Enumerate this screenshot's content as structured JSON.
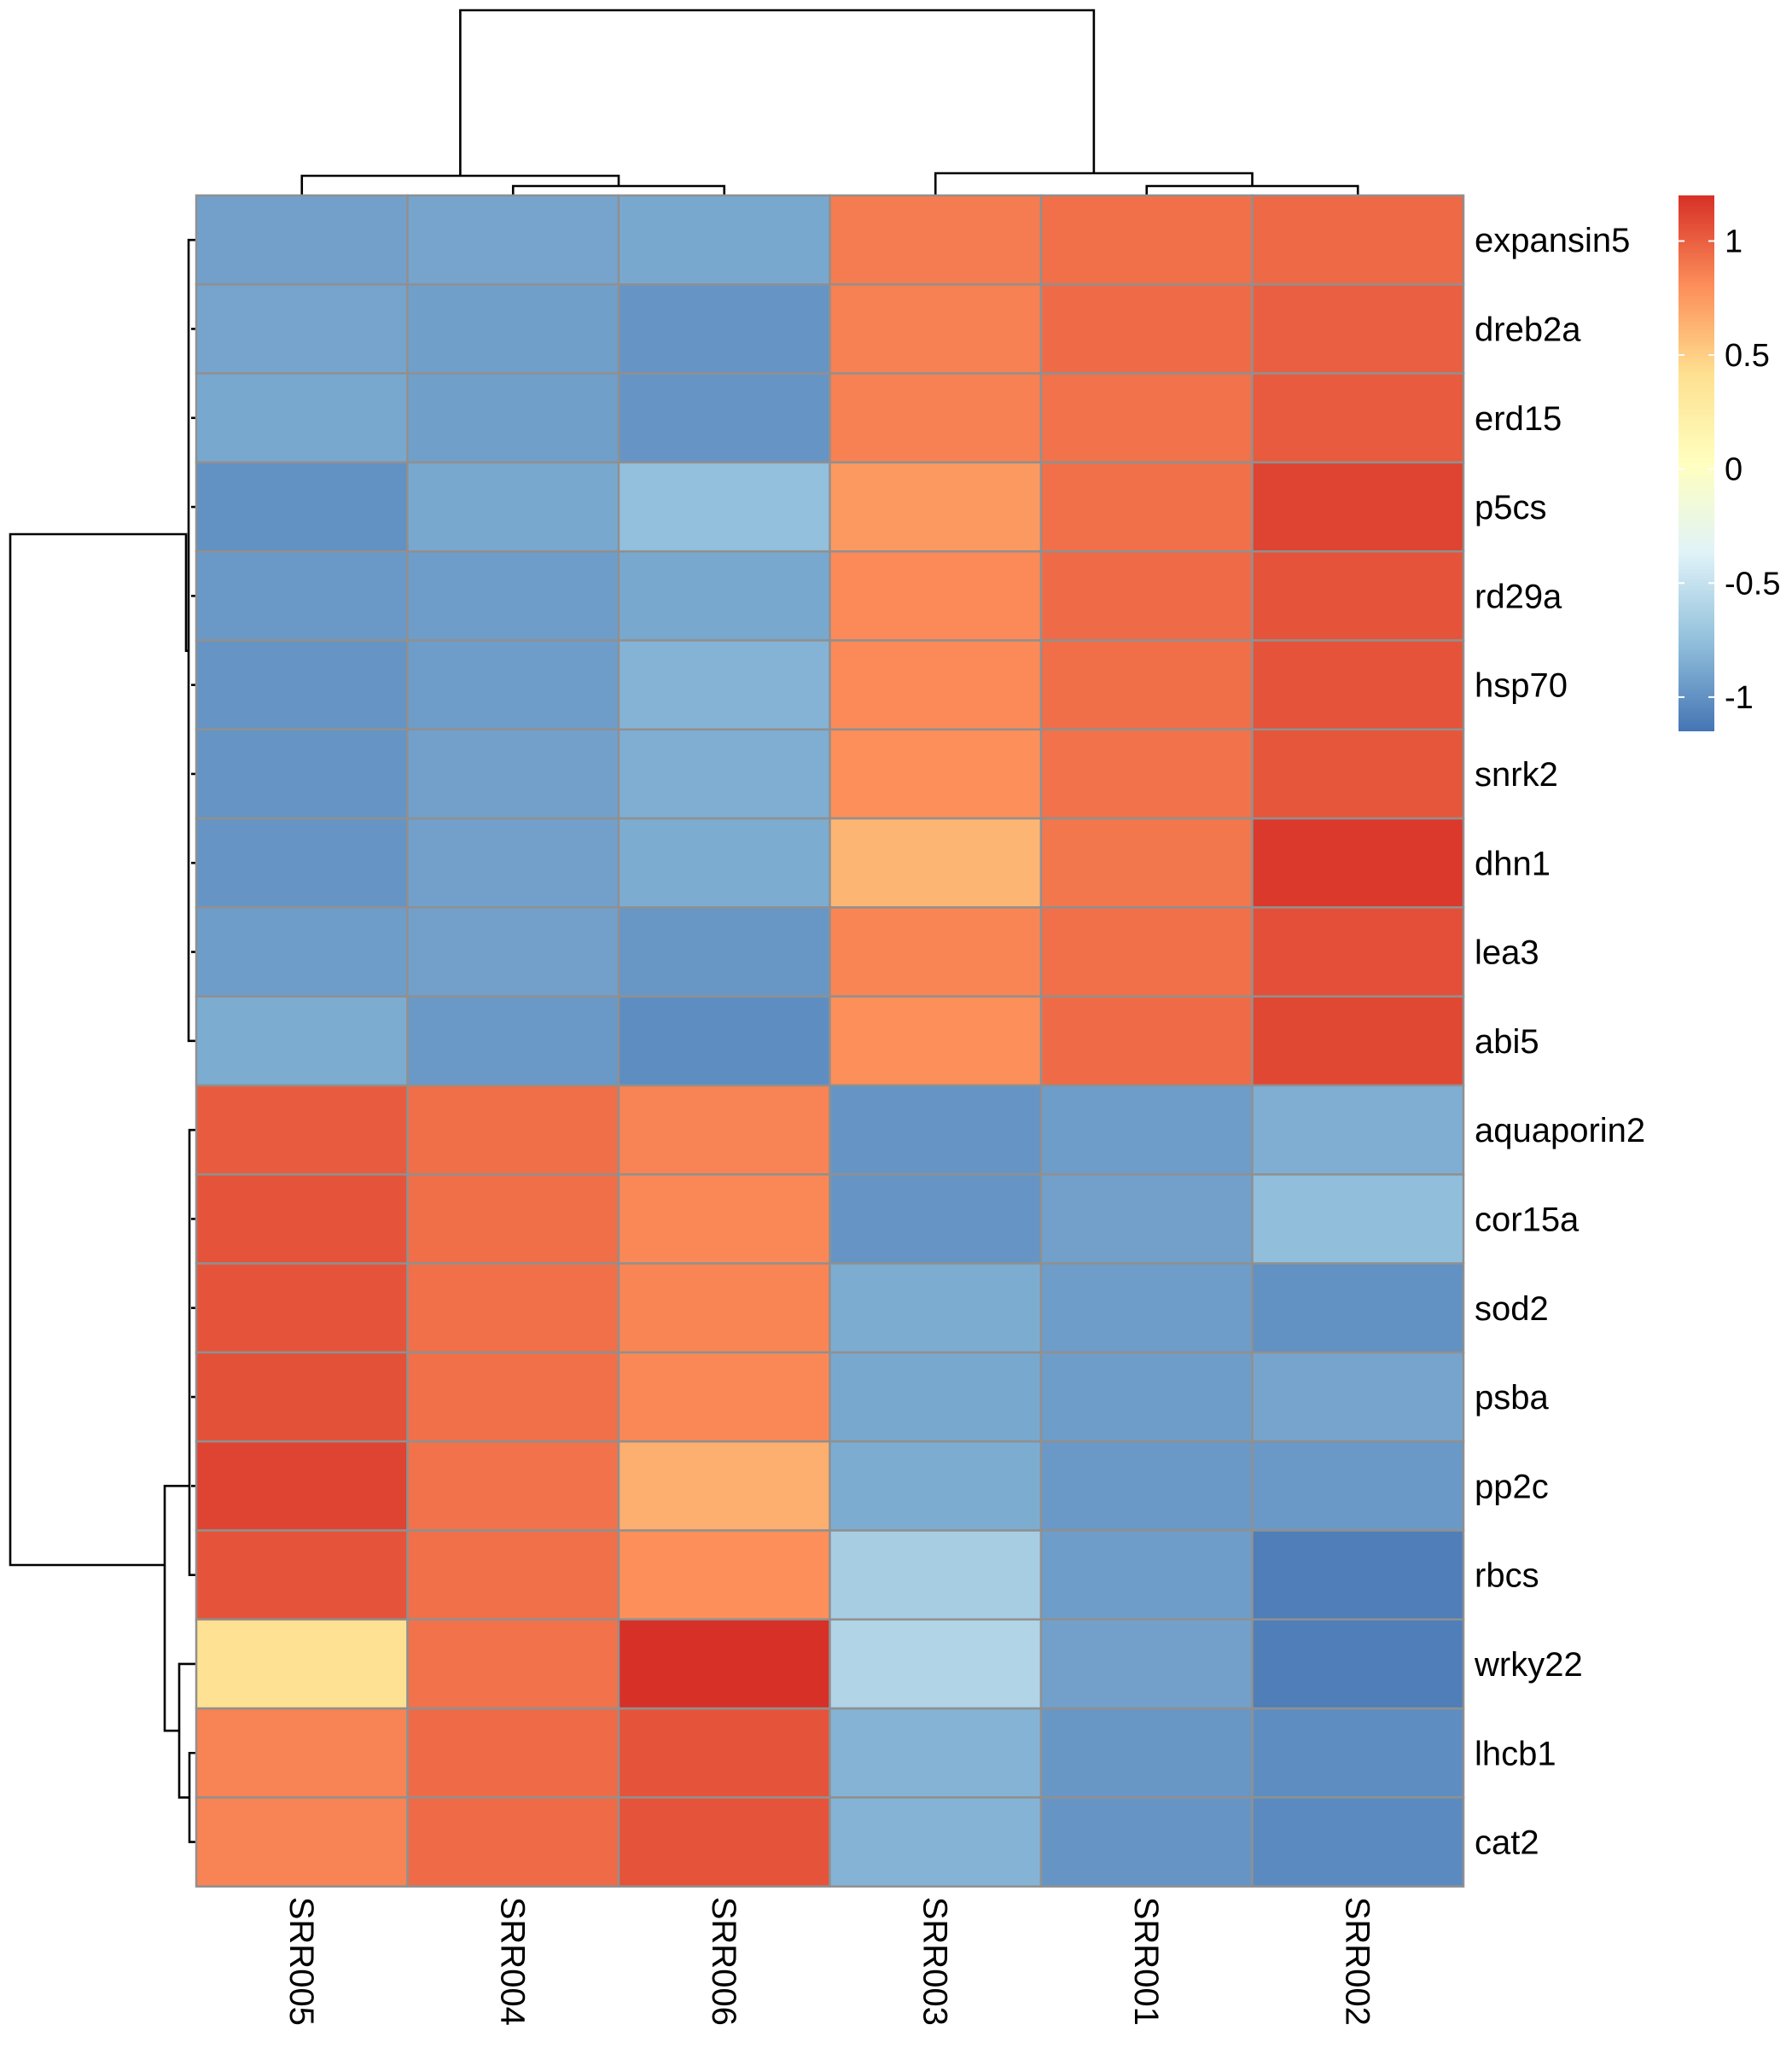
{
  "chart_data": {
    "type": "heatmap",
    "columns": [
      "SRR005",
      "SRR004",
      "SRR006",
      "SRR003",
      "SRR001",
      "SRR002"
    ],
    "rows": [
      "expansin5",
      "dreb2a",
      "erd15",
      "p5cs",
      "rd29a",
      "hsp70",
      "snrk2",
      "dhn1",
      "lea3",
      "abi5",
      "aquaporin2",
      "cor15a",
      "sod2",
      "psba",
      "pp2c",
      "rbcs",
      "wrky22",
      "lhcb1",
      "cat2"
    ],
    "values": [
      [
        -0.92,
        -0.9,
        -0.88,
        0.88,
        0.93,
        0.96
      ],
      [
        -0.9,
        -0.93,
        -0.98,
        0.86,
        0.95,
        1.0
      ],
      [
        -0.88,
        -0.93,
        -0.98,
        0.86,
        0.92,
        1.02
      ],
      [
        -1.0,
        -0.88,
        -0.75,
        0.75,
        0.93,
        1.12
      ],
      [
        -0.96,
        -0.94,
        -0.88,
        0.82,
        0.95,
        1.05
      ],
      [
        -0.98,
        -0.94,
        -0.82,
        0.82,
        0.94,
        1.05
      ],
      [
        -0.98,
        -0.92,
        -0.85,
        0.8,
        0.92,
        1.04
      ],
      [
        -0.98,
        -0.92,
        -0.86,
        0.62,
        0.9,
        1.16
      ],
      [
        -0.94,
        -0.92,
        -0.97,
        0.84,
        0.93,
        1.07
      ],
      [
        -0.86,
        -0.96,
        -1.02,
        0.8,
        0.95,
        1.1
      ],
      [
        1.02,
        0.94,
        0.85,
        -0.98,
        -0.94,
        -0.85
      ],
      [
        1.05,
        0.94,
        0.83,
        -0.98,
        -0.92,
        -0.76
      ],
      [
        1.05,
        0.93,
        0.84,
        -0.86,
        -0.94,
        -1.0
      ],
      [
        1.06,
        0.93,
        0.83,
        -0.88,
        -0.94,
        -0.9
      ],
      [
        1.12,
        0.92,
        0.65,
        -0.86,
        -0.96,
        -0.96
      ],
      [
        1.05,
        0.93,
        0.8,
        -0.65,
        -0.94,
        -1.1
      ],
      [
        0.4,
        0.92,
        1.2,
        -0.6,
        -0.92,
        -1.1
      ],
      [
        0.85,
        0.95,
        1.05,
        -0.82,
        -0.97,
        -1.02
      ],
      [
        0.85,
        0.95,
        1.05,
        -0.82,
        -0.98,
        -1.04
      ]
    ],
    "legend": {
      "ticks": [
        "1",
        "0.5",
        "0",
        "-0.5",
        "-1"
      ],
      "range": [
        -1.15,
        1.2
      ],
      "colors": [
        "#4575B4",
        "#91BFDB",
        "#E0F3F8",
        "#FFFFBF",
        "#FEE090",
        "#FC8D59",
        "#D73027"
      ]
    },
    "cell_border": "#909090",
    "column_dendrogram": [
      "SRR005",
      [
        "SRR004",
        "SRR006"
      ]
    ],
    "row_dendrogram_note": ""
  }
}
